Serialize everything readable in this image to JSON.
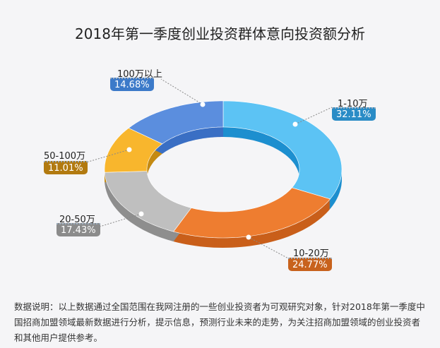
{
  "chart_data": {
    "type": "pie",
    "variant": "3d-donut",
    "title": "2018年第一季度创业投资群体意向投资额分析",
    "categories": [
      "1-10万",
      "10-20万",
      "20-50万",
      "50-100万",
      "100万以上"
    ],
    "values": [
      32.11,
      24.77,
      17.43,
      11.01,
      14.68
    ],
    "labels": [
      "32.11%",
      "24.77%",
      "17.43%",
      "11.01%",
      "14.68%"
    ],
    "colors": [
      "#5cc3f4",
      "#ee7d30",
      "#bfbfbf",
      "#f8b62d",
      "#5b8ede"
    ],
    "side_colors": [
      "#1d8fcf",
      "#c95f1a",
      "#8e8e8e",
      "#c48a12",
      "#3a6fc4"
    ],
    "label_colors": [
      "#2a8cc6",
      "#c8621d",
      "#8b8b8b",
      "#b27a10",
      "#3c7ac9"
    ]
  },
  "note": "数据说明：以上数据通过全国范围在我网注册的一些创业投资者为可观研究对象，针对2018年第一季度中国招商加盟领域最新数据进行分析，提示信息，预测行业未来的走势，为关注招商加盟领域的创业投资者和其他用户提供参考。"
}
